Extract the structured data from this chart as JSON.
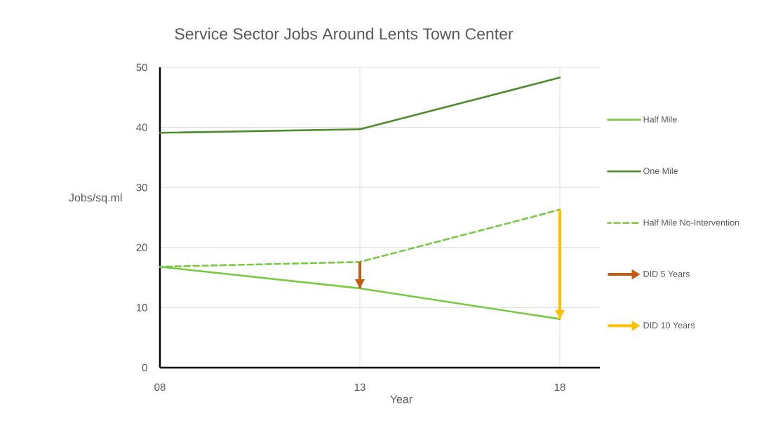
{
  "chart_data": {
    "type": "line",
    "title": "Service Sector Jobs Around Lents Town Center",
    "xlabel": "Year",
    "ylabel": "Jobs/sq.ml",
    "categories": [
      "08",
      "13",
      "18"
    ],
    "series": [
      {
        "name": "Half Mile",
        "color": "#7ac943",
        "values": [
          16.8,
          13.2,
          8.1
        ]
      },
      {
        "name": "One Mile",
        "color": "#4e8a2e",
        "values": [
          39.1,
          39.7,
          48.3
        ]
      },
      {
        "name": "Half Mile No-Intervention",
        "color": "#7ac943",
        "values": [
          16.8,
          17.6,
          26.3
        ],
        "line_style": "dashed"
      },
      {
        "name": "DID 5 Years",
        "color": "#c55a11",
        "x": [
          "13",
          "13"
        ],
        "values": [
          17.6,
          13.2
        ]
      },
      {
        "name": "DID 10 Years",
        "color": "#ffc000",
        "x": [
          "18",
          "18"
        ],
        "values": [
          26.3,
          8.1
        ]
      }
    ],
    "ylim": [
      0,
      50
    ],
    "yticks": [
      0,
      10,
      20,
      30,
      40,
      50
    ],
    "grid": true,
    "legend": "right",
    "marker": "none",
    "line_style": "solid"
  }
}
